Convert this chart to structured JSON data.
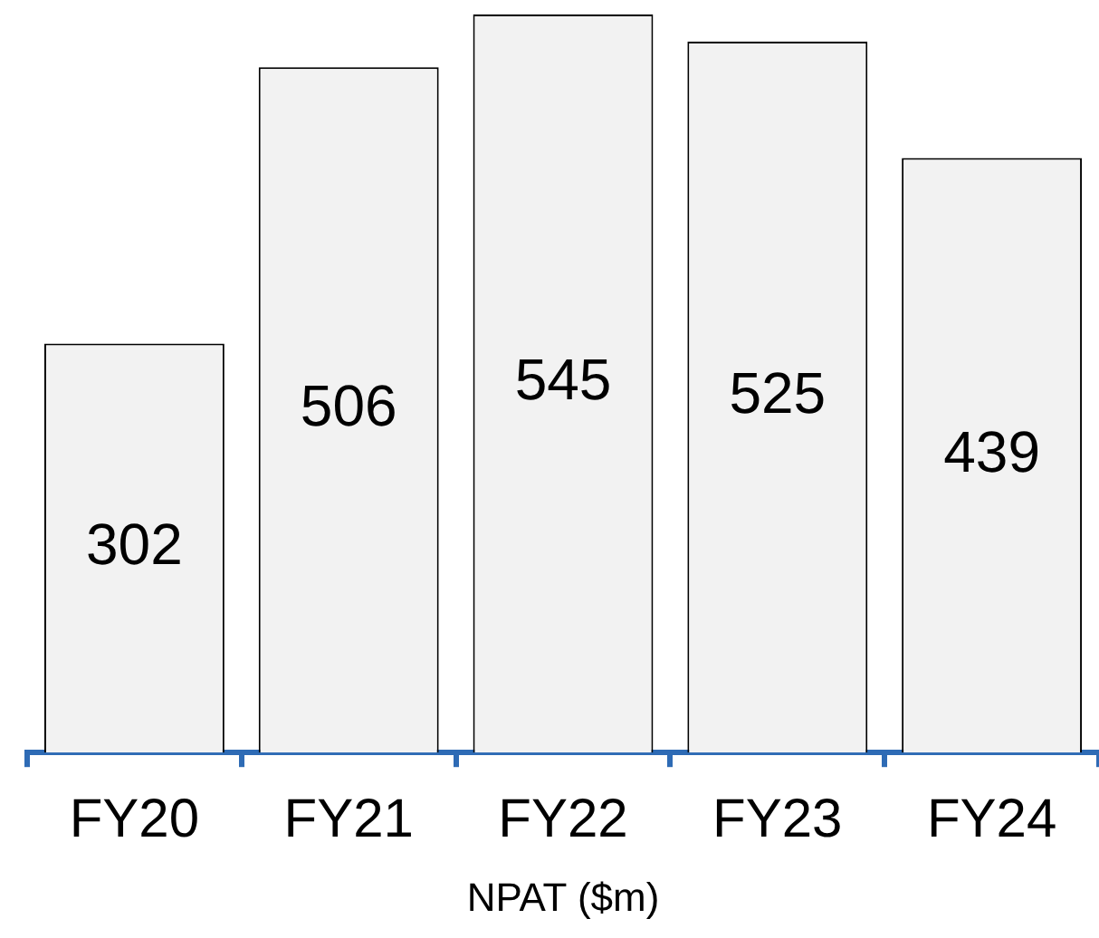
{
  "chart_data": {
    "type": "bar",
    "xlabel": "NPAT ($m)",
    "categories": [
      "FY20",
      "FY21",
      "FY22",
      "FY23",
      "FY24"
    ],
    "values": [
      302,
      506,
      545,
      525,
      439
    ],
    "color": "#f2f2f2",
    "data_labels": true
  }
}
